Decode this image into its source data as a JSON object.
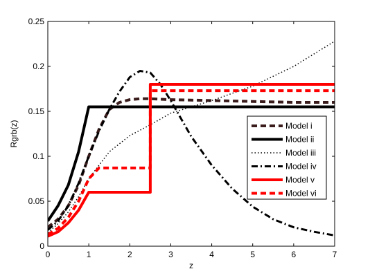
{
  "chart_data": {
    "type": "line",
    "title": "",
    "xlabel": "z",
    "ylabel": "Rgrb(z)",
    "xlim": [
      0,
      7
    ],
    "ylim": [
      0,
      0.25
    ],
    "xticks": [
      "0",
      "1",
      "2",
      "3",
      "4",
      "5",
      "6",
      "7"
    ],
    "yticks": [
      "0",
      "0.05",
      "0.1",
      "0.15",
      "0.2",
      "0.25"
    ],
    "grid": false,
    "legend_position": "right",
    "series": [
      {
        "name": "Model i",
        "color": "#3b1c1c",
        "style": "dashed",
        "x": [
          0,
          0.25,
          0.5,
          0.75,
          1.0,
          1.25,
          1.5,
          1.75,
          2.0,
          2.25,
          2.5,
          3.0,
          4.0,
          5.0,
          6.0,
          7.0
        ],
        "y": [
          0.021,
          0.03,
          0.045,
          0.068,
          0.1,
          0.13,
          0.152,
          0.16,
          0.163,
          0.164,
          0.164,
          0.163,
          0.162,
          0.161,
          0.16,
          0.16
        ]
      },
      {
        "name": "Model ii",
        "color": "#000000",
        "style": "solid",
        "x": [
          0,
          0.25,
          0.5,
          0.75,
          1.0,
          7.0
        ],
        "y": [
          0.028,
          0.045,
          0.068,
          0.105,
          0.155,
          0.155
        ]
      },
      {
        "name": "Model iii",
        "color": "#000000",
        "style": "dotted",
        "x": [
          0,
          0.25,
          0.5,
          0.75,
          1.0,
          1.5,
          2.0,
          2.5,
          3.0,
          4.0,
          5.0,
          6.0,
          7.0
        ],
        "y": [
          0.015,
          0.025,
          0.038,
          0.055,
          0.075,
          0.105,
          0.123,
          0.135,
          0.148,
          0.162,
          0.178,
          0.2,
          0.228
        ]
      },
      {
        "name": "Model iv",
        "color": "#000000",
        "style": "dashdot",
        "x": [
          0,
          0.25,
          0.5,
          0.75,
          1.0,
          1.25,
          1.5,
          1.75,
          2.0,
          2.25,
          2.5,
          2.75,
          3.0,
          3.25,
          3.5,
          4.0,
          4.5,
          5.0,
          5.5,
          6.0,
          6.5,
          7.0
        ],
        "y": [
          0.018,
          0.028,
          0.045,
          0.07,
          0.1,
          0.128,
          0.152,
          0.172,
          0.188,
          0.195,
          0.193,
          0.18,
          0.162,
          0.142,
          0.122,
          0.09,
          0.064,
          0.044,
          0.03,
          0.021,
          0.016,
          0.012
        ]
      },
      {
        "name": "Model v",
        "color": "#ff0000",
        "style": "solid",
        "x": [
          0,
          0.25,
          0.5,
          0.75,
          1.0,
          2.5,
          2.5,
          7.0
        ],
        "y": [
          0.011,
          0.016,
          0.026,
          0.04,
          0.06,
          0.06,
          0.18,
          0.18
        ]
      },
      {
        "name": "Model vi",
        "color": "#ff0000",
        "style": "dashed",
        "x": [
          0,
          0.25,
          0.5,
          0.75,
          1.0,
          1.25,
          2.5,
          2.5,
          7.0
        ],
        "y": [
          0.013,
          0.02,
          0.032,
          0.05,
          0.075,
          0.087,
          0.087,
          0.173,
          0.173
        ]
      }
    ]
  }
}
